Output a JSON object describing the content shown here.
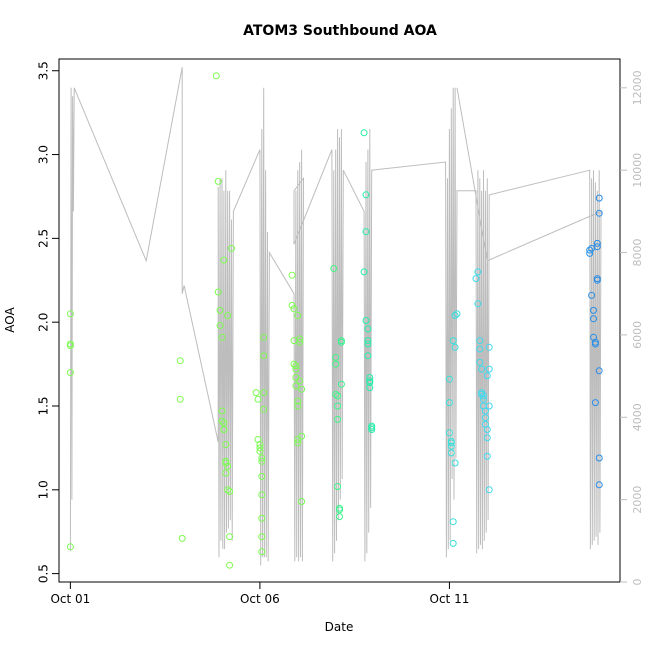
{
  "chart_data": {
    "type": "scatter",
    "title": "ATOM3 Southbound AOA",
    "xlabel": "Date",
    "ylabel": "AOA",
    "x_ticks": [
      {
        "day": 1,
        "label": "Oct 01"
      },
      {
        "day": 6,
        "label": "Oct 06"
      },
      {
        "day": 11,
        "label": "Oct 11"
      }
    ],
    "y_ticks": [
      "0.5",
      "1.0",
      "1.5",
      "2.0",
      "2.5",
      "3.0",
      "3.5"
    ],
    "y_range": [
      0.45,
      3.57
    ],
    "x_range": [
      0.7,
      15.5
    ],
    "right_y_ticks": [
      "0",
      "2000",
      "4000",
      "6000",
      "8000",
      "10000",
      "12000"
    ],
    "right_y_range": [
      0,
      12700
    ],
    "grid": false,
    "colors": {
      "points_start": "#7cfc50",
      "points_mid": "#22f0a0",
      "points_late": "#40d8f0",
      "points_end": "#2a8ae6",
      "secondary_line": "#bdbdbd"
    },
    "series": [
      {
        "x": [
          1.0,
          1.0,
          1.0,
          1.0,
          1.0
        ],
        "y": [
          2.05,
          1.87,
          1.86,
          1.7,
          0.66
        ]
      },
      {
        "x": [
          3.9,
          3.9,
          3.95
        ],
        "y": [
          1.77,
          1.54,
          0.71
        ]
      },
      {
        "x": [
          4.85,
          4.9,
          4.9,
          4.95,
          4.95,
          5.0,
          5.0,
          5.0,
          5.05,
          5.05,
          5.05,
          5.1,
          5.1,
          5.1,
          5.1,
          5.15,
          5.15,
          5.2,
          5.2,
          5.2,
          5.25,
          5.05,
          5.15
        ],
        "y": [
          3.47,
          2.84,
          2.18,
          2.07,
          1.98,
          1.91,
          1.47,
          1.41,
          1.4,
          1.36,
          1.36,
          1.27,
          1.17,
          1.16,
          1.1,
          1.14,
          1.0,
          0.99,
          0.72,
          0.55,
          2.44,
          2.37,
          2.04
        ]
      },
      {
        "x": [
          5.9,
          5.95,
          5.95,
          6.0,
          6.0,
          6.0,
          6.05,
          6.05,
          6.05,
          6.05,
          6.05,
          6.05,
          6.05,
          6.1,
          6.1,
          6.1,
          6.1
        ],
        "y": [
          1.58,
          1.54,
          1.3,
          1.27,
          1.25,
          1.23,
          1.19,
          1.17,
          1.08,
          0.97,
          0.83,
          0.72,
          0.63,
          1.91,
          1.8,
          1.48,
          1.58
        ]
      },
      {
        "x": [
          6.85,
          6.85,
          6.9,
          6.9,
          6.9,
          6.95,
          6.95,
          6.95,
          6.95,
          7.0,
          7.0,
          7.0,
          7.0,
          7.0,
          7.05,
          7.05,
          7.05,
          7.1,
          7.1,
          7.1
        ],
        "y": [
          2.28,
          2.1,
          2.08,
          1.89,
          1.75,
          1.74,
          1.72,
          1.67,
          1.62,
          1.53,
          1.5,
          1.3,
          1.28,
          2.04,
          1.9,
          1.88,
          1.65,
          1.32,
          0.93,
          1.6
        ]
      },
      {
        "x": [
          7.95,
          8.0,
          8.0,
          8.0,
          8.05,
          8.05,
          8.05,
          8.05,
          8.1,
          8.1,
          8.1,
          8.15,
          8.15,
          8.15
        ],
        "y": [
          2.32,
          1.79,
          1.75,
          1.57,
          1.56,
          1.5,
          1.42,
          1.02,
          0.89,
          0.88,
          0.84,
          1.89,
          1.88,
          1.63
        ]
      },
      {
        "x": [
          8.75,
          8.75,
          8.8,
          8.8,
          8.8,
          8.85,
          8.85,
          8.85,
          8.85,
          8.9,
          8.9,
          8.9,
          8.9,
          8.95,
          8.95,
          8.95
        ],
        "y": [
          3.13,
          2.3,
          2.76,
          2.54,
          2.01,
          1.96,
          1.89,
          1.87,
          1.8,
          1.67,
          1.64,
          1.65,
          1.61,
          1.38,
          1.37,
          1.36
        ]
      },
      {
        "x": [
          11.0,
          11.0,
          11.0,
          11.05,
          11.05,
          11.05,
          11.05,
          11.1,
          11.1,
          11.1,
          11.15,
          11.15,
          11.15,
          11.2
        ],
        "y": [
          1.66,
          1.52,
          1.34,
          1.29,
          1.28,
          1.26,
          1.22,
          0.81,
          0.68,
          1.89,
          1.85,
          1.16,
          2.04,
          2.05
        ]
      },
      {
        "x": [
          11.7,
          11.75,
          11.75,
          11.8,
          11.8,
          11.8,
          11.85,
          11.85,
          11.85,
          11.9,
          11.9,
          11.9,
          11.95,
          11.95,
          11.95,
          12.0,
          12.0,
          12.0,
          12.05,
          12.05,
          12.05,
          12.0,
          12.05
        ],
        "y": [
          2.26,
          2.3,
          2.11,
          1.89,
          1.84,
          1.76,
          1.72,
          1.58,
          1.57,
          1.56,
          1.54,
          1.5,
          1.47,
          1.43,
          1.39,
          1.36,
          1.31,
          1.2,
          1.0,
          1.85,
          1.72,
          1.68,
          1.5
        ]
      },
      {
        "x": [
          14.7,
          14.7,
          14.75,
          14.75,
          14.8,
          14.8,
          14.8,
          14.85,
          14.85,
          14.85,
          14.9,
          14.9,
          14.9,
          14.9,
          14.95,
          14.95,
          14.95,
          14.95,
          14.95
        ],
        "y": [
          2.41,
          2.43,
          2.44,
          2.16,
          2.07,
          2.02,
          1.91,
          1.88,
          1.87,
          1.52,
          2.45,
          2.47,
          2.26,
          2.25,
          1.19,
          1.03,
          2.74,
          2.65,
          1.71
        ]
      }
    ],
    "secondary_line": {
      "axis": "right",
      "x": [
        1.0,
        1.02,
        1.04,
        1.06,
        1.08,
        1.1,
        3.0,
        3.95,
        3.95,
        4.0,
        4.9,
        4.9,
        4.92,
        4.95,
        4.97,
        5.0,
        5.02,
        5.05,
        5.07,
        5.1,
        5.12,
        5.15,
        5.17,
        5.2,
        5.22,
        5.25,
        5.27,
        5.3,
        6.0,
        6.02,
        6.05,
        6.07,
        6.1,
        6.12,
        6.15,
        6.17,
        6.2,
        6.22,
        6.25,
        6.9,
        6.92,
        6.95,
        6.97,
        7.0,
        7.02,
        7.05,
        7.07,
        7.1,
        7.12,
        7.15,
        6.9,
        6.9,
        7.9,
        7.92,
        7.95,
        7.97,
        8.0,
        8.02,
        8.05,
        8.07,
        8.1,
        8.12,
        8.15,
        8.17,
        8.2,
        8.75,
        8.77,
        8.8,
        8.82,
        8.85,
        8.87,
        8.9,
        8.92,
        8.95,
        10.9,
        10.92,
        10.95,
        10.97,
        11.0,
        11.02,
        11.05,
        11.07,
        11.1,
        11.12,
        11.15,
        11.17,
        11.2,
        11.7,
        11.72,
        11.75,
        11.77,
        11.8,
        11.82,
        11.85,
        11.87,
        11.9,
        11.92,
        11.95,
        11.97,
        12.0,
        12.02,
        12.05,
        14.7,
        14.72,
        14.75,
        14.77,
        14.8,
        14.82,
        14.85,
        14.87,
        14.9,
        14.92,
        14.95,
        14.97,
        15.0,
        12.0,
        11.2
      ],
      "y": [
        750,
        12000,
        2000,
        11800,
        9000,
        12000,
        7800,
        12500,
        7000,
        7200,
        3400,
        9600,
        600,
        9800,
        1000,
        9800,
        800,
        9500,
        800,
        10000,
        1200,
        9500,
        1300,
        9500,
        1500,
        8800,
        1000,
        9000,
        10500,
        400,
        11000,
        600,
        12000,
        600,
        10000,
        600,
        8500,
        500,
        8000,
        7000,
        500,
        9500,
        600,
        10000,
        500,
        10200,
        600,
        10500,
        500,
        9800,
        9500,
        8200,
        10500,
        500,
        10000,
        700,
        10500,
        1000,
        11000,
        1500,
        10800,
        2000,
        11000,
        2500,
        10000,
        9000,
        500,
        10200,
        700,
        10500,
        1200,
        11000,
        1800,
        10000,
        10200,
        600,
        9800,
        800,
        11000,
        1000,
        11500,
        2500,
        12000,
        2000,
        12000,
        3000,
        9500,
        9500,
        700,
        10000,
        800,
        9800,
        900,
        9500,
        800,
        10000,
        1000,
        9500,
        1200,
        9800,
        1500,
        9400,
        10000,
        800,
        9800,
        900,
        10000,
        1000,
        9700,
        1100,
        9500,
        900,
        10000,
        1200,
        9000,
        7800,
        12000
      ]
    }
  }
}
